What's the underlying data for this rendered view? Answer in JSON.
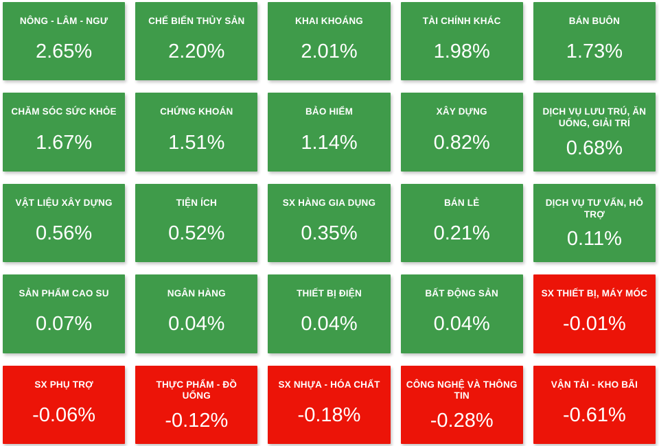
{
  "colors": {
    "positive": "#3f9b4a",
    "negative": "#ec1408",
    "text": "#ffffff",
    "background": "#ffffff"
  },
  "chart_data": {
    "type": "heatmap",
    "unit": "%",
    "layout": "5x5 tile grid, sorted descending by percent change, green = positive, red = negative, legend off, axes off",
    "categories": [
      "NÔNG - LÂM - NGƯ",
      "CHẾ BIẾN THỦY SẢN",
      "KHAI KHOÁNG",
      "TÀI CHÍNH KHÁC",
      "BÁN BUÔN",
      "CHĂM SÓC SỨC KHỎE",
      "CHỨNG KHOÁN",
      "BẢO HIỂM",
      "XÂY DỰNG",
      "DỊCH VỤ LƯU TRÚ, ĂN UỐNG, GIẢI TRÍ",
      "VẬT LIỆU XÂY DỰNG",
      "TIỆN ÍCH",
      "SX HÀNG GIA DỤNG",
      "BÁN LẺ",
      "DỊCH VỤ TƯ VẤN, HỖ TRỢ",
      "SẢN PHẨM CAO SU",
      "NGÂN HÀNG",
      "THIẾT BỊ ĐIỆN",
      "BẤT ĐỘNG SẢN",
      "SX THIẾT BỊ, MÁY MÓC",
      "SX PHỤ TRỢ",
      "THỰC PHẨM - ĐỒ UỐNG",
      "SX NHỰA - HÓA CHẤT",
      "CÔNG NGHỆ VÀ THÔNG TIN",
      "VẬN TẢI - KHO BÃI"
    ],
    "values": [
      2.65,
      2.2,
      2.01,
      1.98,
      1.73,
      1.67,
      1.51,
      1.14,
      0.82,
      0.68,
      0.56,
      0.52,
      0.35,
      0.21,
      0.11,
      0.07,
      0.04,
      0.04,
      0.04,
      -0.01,
      -0.06,
      -0.12,
      -0.18,
      -0.28,
      -0.61
    ]
  },
  "tiles": [
    {
      "label": "NÔNG - LÂM - NGƯ",
      "value": 2.65,
      "value_text": "2.65%",
      "state": "positive"
    },
    {
      "label": "CHẾ BIẾN THỦY SẢN",
      "value": 2.2,
      "value_text": "2.20%",
      "state": "positive"
    },
    {
      "label": "KHAI KHOÁNG",
      "value": 2.01,
      "value_text": "2.01%",
      "state": "positive"
    },
    {
      "label": "TÀI CHÍNH KHÁC",
      "value": 1.98,
      "value_text": "1.98%",
      "state": "positive"
    },
    {
      "label": "BÁN BUÔN",
      "value": 1.73,
      "value_text": "1.73%",
      "state": "positive"
    },
    {
      "label": "CHĂM SÓC SỨC KHỎE",
      "value": 1.67,
      "value_text": "1.67%",
      "state": "positive"
    },
    {
      "label": "CHỨNG KHOÁN",
      "value": 1.51,
      "value_text": "1.51%",
      "state": "positive"
    },
    {
      "label": "BẢO HIỂM",
      "value": 1.14,
      "value_text": "1.14%",
      "state": "positive"
    },
    {
      "label": "XÂY DỰNG",
      "value": 0.82,
      "value_text": "0.82%",
      "state": "positive"
    },
    {
      "label": "DỊCH VỤ LƯU TRÚ, ĂN UỐNG, GIẢI TRÍ",
      "value": 0.68,
      "value_text": "0.68%",
      "state": "positive"
    },
    {
      "label": "VẬT LIỆU XÂY DỰNG",
      "value": 0.56,
      "value_text": "0.56%",
      "state": "positive"
    },
    {
      "label": "TIỆN ÍCH",
      "value": 0.52,
      "value_text": "0.52%",
      "state": "positive"
    },
    {
      "label": "SX HÀNG GIA DỤNG",
      "value": 0.35,
      "value_text": "0.35%",
      "state": "positive"
    },
    {
      "label": "BÁN LẺ",
      "value": 0.21,
      "value_text": "0.21%",
      "state": "positive"
    },
    {
      "label": "DỊCH VỤ TƯ VẤN, HỖ TRỢ",
      "value": 0.11,
      "value_text": "0.11%",
      "state": "positive"
    },
    {
      "label": "SẢN PHẨM CAO SU",
      "value": 0.07,
      "value_text": "0.07%",
      "state": "positive"
    },
    {
      "label": "NGÂN HÀNG",
      "value": 0.04,
      "value_text": "0.04%",
      "state": "positive"
    },
    {
      "label": "THIẾT BỊ ĐIỆN",
      "value": 0.04,
      "value_text": "0.04%",
      "state": "positive"
    },
    {
      "label": "BẤT ĐỘNG SẢN",
      "value": 0.04,
      "value_text": "0.04%",
      "state": "positive"
    },
    {
      "label": "SX THIẾT BỊ, MÁY MÓC",
      "value": -0.01,
      "value_text": "-0.01%",
      "state": "negative"
    },
    {
      "label": "SX PHỤ TRỢ",
      "value": -0.06,
      "value_text": "-0.06%",
      "state": "negative"
    },
    {
      "label": "THỰC PHẨM - ĐỒ UỐNG",
      "value": -0.12,
      "value_text": "-0.12%",
      "state": "negative"
    },
    {
      "label": "SX NHỰA - HÓA CHẤT",
      "value": -0.18,
      "value_text": "-0.18%",
      "state": "negative"
    },
    {
      "label": "CÔNG NGHỆ VÀ THÔNG TIN",
      "value": -0.28,
      "value_text": "-0.28%",
      "state": "negative"
    },
    {
      "label": "VẬN TẢI - KHO BÃI",
      "value": -0.61,
      "value_text": "-0.61%",
      "state": "negative"
    }
  ]
}
